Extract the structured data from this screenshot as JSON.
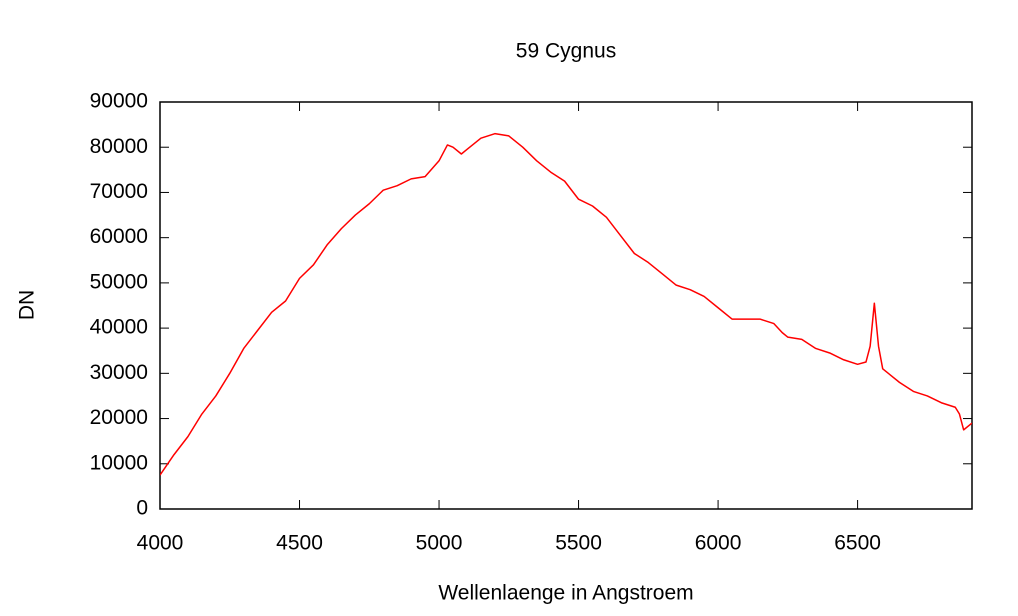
{
  "chart_data": {
    "type": "line",
    "title": "59 Cygnus",
    "x_label": "Wellenlaenge in Angstroem",
    "y_label": "DN",
    "x": [
      4000,
      4050,
      4100,
      4150,
      4200,
      4250,
      4300,
      4350,
      4400,
      4450,
      4500,
      4550,
      4600,
      4650,
      4700,
      4750,
      4800,
      4850,
      4900,
      4950,
      5000,
      5030,
      5050,
      5080,
      5100,
      5150,
      5200,
      5250,
      5300,
      5350,
      5400,
      5450,
      5500,
      5550,
      5600,
      5650,
      5700,
      5750,
      5800,
      5850,
      5900,
      5950,
      6000,
      6050,
      6100,
      6150,
      6200,
      6230,
      6250,
      6300,
      6350,
      6400,
      6450,
      6500,
      6530,
      6545,
      6560,
      6575,
      6590,
      6650,
      6700,
      6750,
      6800,
      6850,
      6865,
      6880,
      6910
    ],
    "series": [
      {
        "name": "DN",
        "color": "#ff0000",
        "values": [
          7500,
          12000,
          16000,
          21000,
          25000,
          30000,
          35500,
          39500,
          43500,
          46000,
          51000,
          54000,
          58500,
          62000,
          65000,
          67500,
          70500,
          71500,
          73000,
          73500,
          77000,
          80500,
          80000,
          78500,
          79500,
          82000,
          83000,
          82500,
          80000,
          77000,
          74500,
          72500,
          68500,
          67000,
          64500,
          60500,
          56500,
          54500,
          52000,
          49500,
          48500,
          47000,
          44500,
          42000,
          42000,
          42000,
          41000,
          39000,
          38000,
          37500,
          35500,
          34500,
          33000,
          32000,
          32500,
          36000,
          45500,
          36000,
          31000,
          28000,
          26000,
          25000,
          23500,
          22500,
          21000,
          17500,
          19000
        ]
      }
    ],
    "xlim": [
      4000,
      6910
    ],
    "ylim": [
      0,
      90000
    ],
    "xticks": [
      4000,
      4500,
      5000,
      5500,
      6000,
      6500
    ],
    "yticks": [
      0,
      10000,
      20000,
      30000,
      40000,
      50000,
      60000,
      70000,
      80000,
      90000
    ],
    "grid": false
  }
}
